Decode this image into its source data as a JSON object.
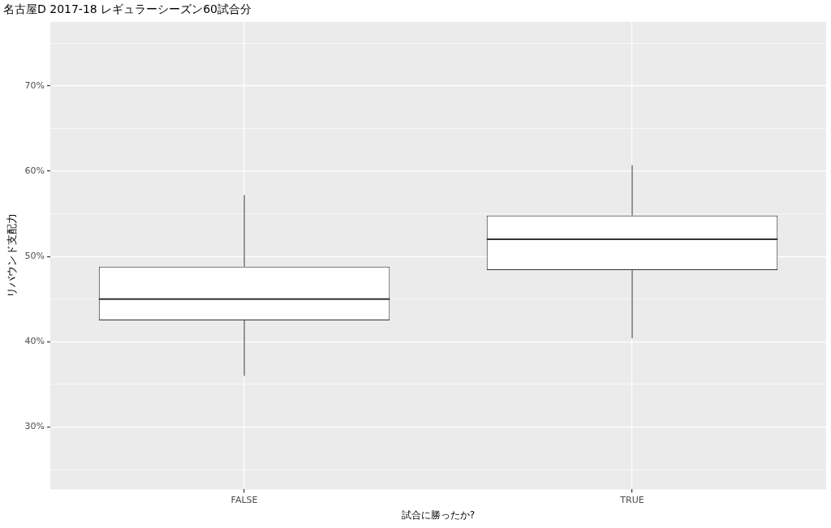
{
  "chart_data": {
    "type": "box",
    "title": "名古屋D 2017-18 レギュラーシーズン60試合分",
    "xlabel": "試合に勝ったか?",
    "ylabel": "リバウンド支配力",
    "categories": [
      "FALSE",
      "TRUE"
    ],
    "boxes": [
      {
        "low": 36.0,
        "q1": 42.5,
        "median": 45.0,
        "q3": 48.8,
        "high": 57.2
      },
      {
        "low": 40.4,
        "q1": 48.4,
        "median": 52.0,
        "q3": 54.8,
        "high": 60.7
      }
    ],
    "ylim": [
      22.7,
      77.5
    ],
    "yticks": [
      {
        "value": 25,
        "label": null
      },
      {
        "value": 30,
        "label": "30%"
      },
      {
        "value": 35,
        "label": null
      },
      {
        "value": 40,
        "label": "40%"
      },
      {
        "value": 45,
        "label": null
      },
      {
        "value": 50,
        "label": "50%"
      },
      {
        "value": 55,
        "label": null
      },
      {
        "value": 60,
        "label": "60%"
      },
      {
        "value": 65,
        "label": null
      },
      {
        "value": 70,
        "label": "70%"
      },
      {
        "value": 75,
        "label": null
      }
    ],
    "grid": true,
    "legend": false
  }
}
